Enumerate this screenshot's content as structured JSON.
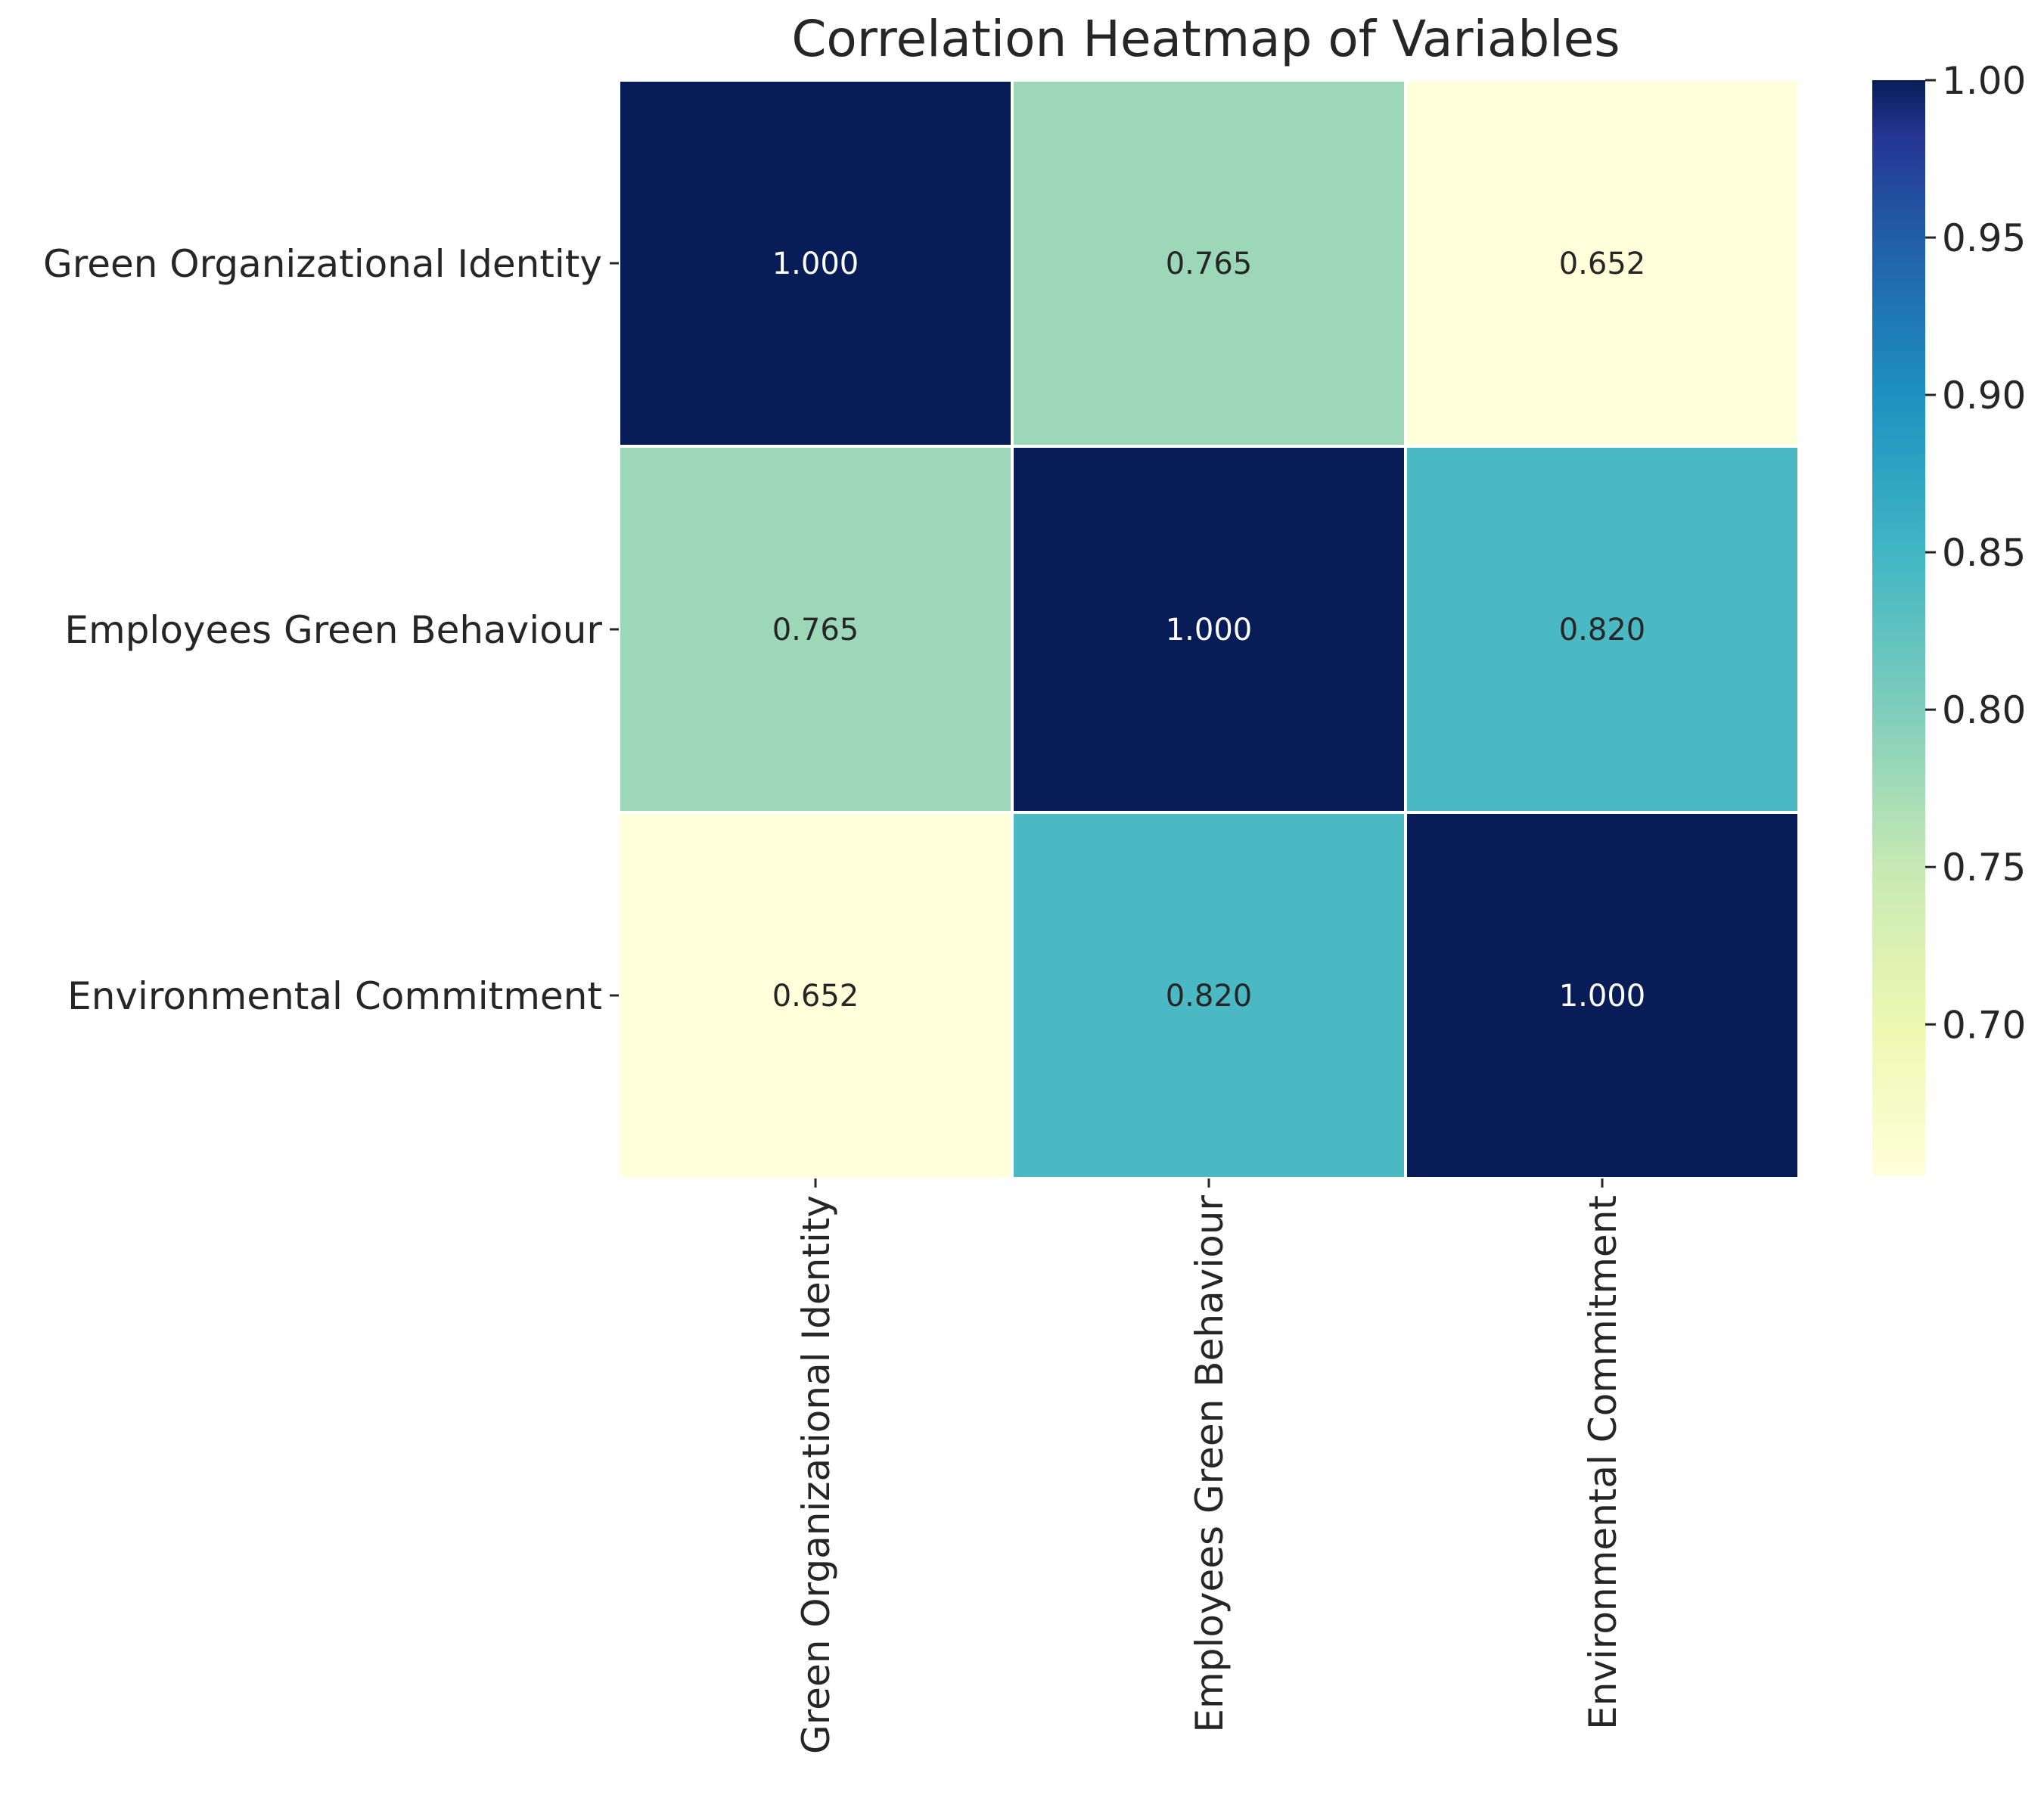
{
  "chart_data": {
    "type": "heatmap",
    "title": "Correlation Heatmap of Variables",
    "rows": [
      "Green Organizational Identity",
      "Employees Green Behaviour",
      "Environmental Commitment"
    ],
    "columns": [
      "Green Organizational Identity",
      "Employees Green Behaviour",
      "Environmental Commitment"
    ],
    "values": [
      [
        1.0,
        0.765,
        0.652
      ],
      [
        0.765,
        1.0,
        0.82
      ],
      [
        0.652,
        0.82,
        1.0
      ]
    ],
    "cell_labels": [
      [
        "1.000",
        "0.765",
        "0.652"
      ],
      [
        "0.765",
        "1.000",
        "0.820"
      ],
      [
        "0.652",
        "0.820",
        "1.000"
      ]
    ],
    "colormap": "YlGnBu",
    "colorbar": {
      "range": [
        0.652,
        1.0
      ],
      "ticks": [
        0.7,
        0.75,
        0.8,
        0.85,
        0.9,
        0.95,
        1.0
      ],
      "tick_labels": [
        "0.70",
        "0.75",
        "0.80",
        "0.85",
        "0.90",
        "0.95",
        "1.00"
      ]
    },
    "xlabel": "",
    "ylabel": "",
    "grid": false,
    "legend": "colorbar-right"
  }
}
